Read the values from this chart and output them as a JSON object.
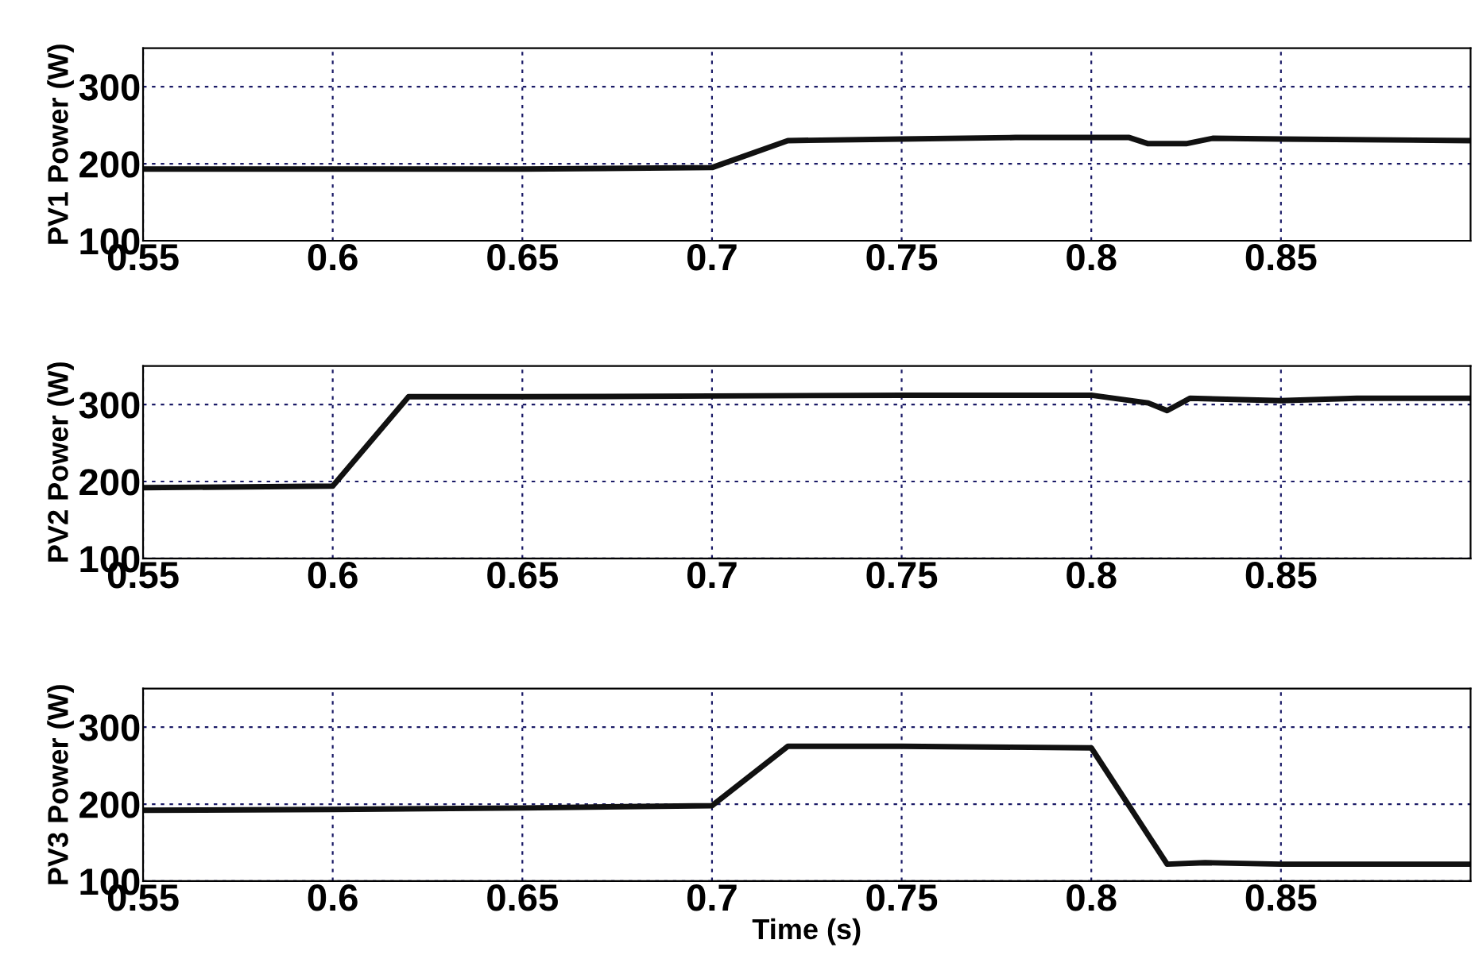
{
  "chart_data": [
    {
      "type": "line",
      "ylabel": "PV1 Power (W)",
      "xlim": [
        0.55,
        0.9
      ],
      "ylim": [
        100,
        350
      ],
      "xticks": [
        0.55,
        0.6,
        0.65,
        0.7,
        0.75,
        0.8,
        0.85
      ],
      "yticks": [
        100,
        200,
        300
      ],
      "grid": true,
      "line_style": "solid",
      "series": [
        {
          "color": "#111111",
          "x": [
            0.55,
            0.6,
            0.65,
            0.7,
            0.72,
            0.75,
            0.78,
            0.81,
            0.815,
            0.825,
            0.832,
            0.85,
            0.9
          ],
          "values": [
            193,
            193,
            193,
            195,
            230,
            232,
            234,
            234,
            226,
            226,
            233,
            232,
            230
          ]
        }
      ]
    },
    {
      "type": "line",
      "ylabel": "PV2 Power (W)",
      "xlim": [
        0.55,
        0.9
      ],
      "ylim": [
        100,
        350
      ],
      "xticks": [
        0.55,
        0.6,
        0.65,
        0.7,
        0.75,
        0.8,
        0.85
      ],
      "yticks": [
        100,
        200,
        300
      ],
      "grid": true,
      "line_style": "solid",
      "series": [
        {
          "color": "#111111",
          "x": [
            0.55,
            0.6,
            0.62,
            0.65,
            0.7,
            0.75,
            0.8,
            0.815,
            0.82,
            0.826,
            0.85,
            0.87,
            0.9
          ],
          "values": [
            192,
            194,
            310,
            310,
            311,
            312,
            312,
            302,
            292,
            308,
            305,
            308,
            308
          ]
        }
      ]
    },
    {
      "type": "line",
      "ylabel": "PV3 Power (W)",
      "xlabel": "Time (s)",
      "xlim": [
        0.55,
        0.9
      ],
      "ylim": [
        100,
        350
      ],
      "xticks": [
        0.55,
        0.6,
        0.65,
        0.7,
        0.75,
        0.8,
        0.85
      ],
      "yticks": [
        100,
        200,
        300
      ],
      "grid": true,
      "line_style": "solid",
      "series": [
        {
          "color": "#111111",
          "x": [
            0.55,
            0.6,
            0.65,
            0.7,
            0.72,
            0.75,
            0.8,
            0.82,
            0.83,
            0.85,
            0.9
          ],
          "values": [
            192,
            193,
            195,
            198,
            275,
            275,
            273,
            122,
            124,
            122,
            122
          ]
        }
      ]
    }
  ]
}
